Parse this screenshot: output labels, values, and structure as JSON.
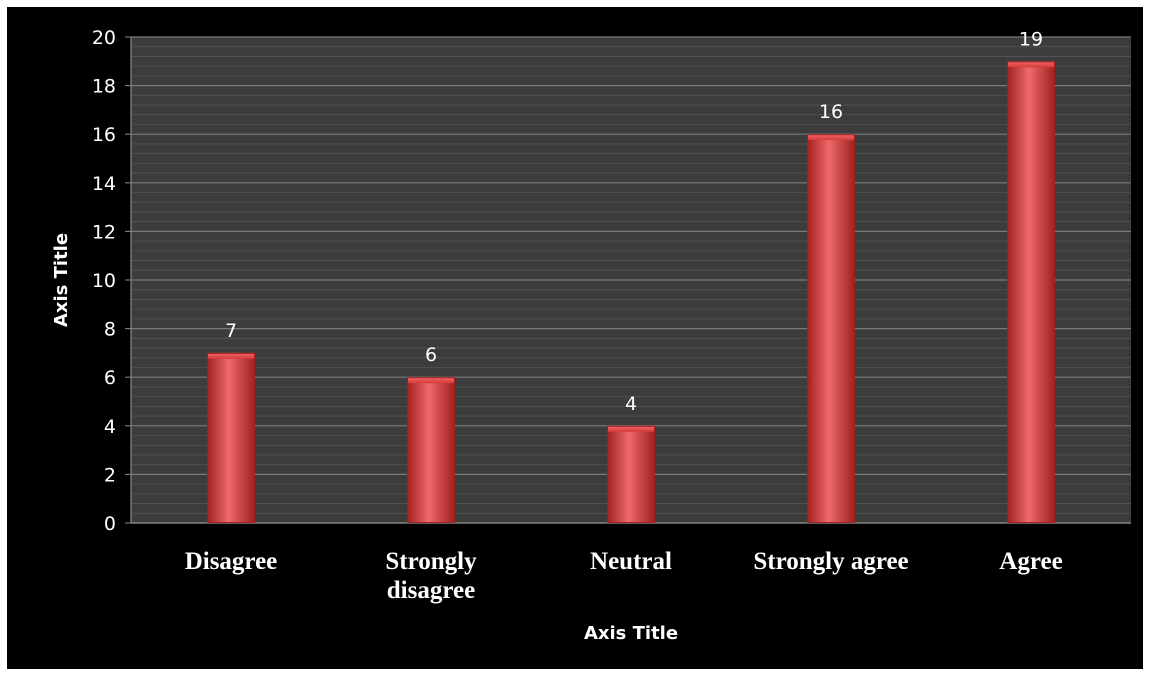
{
  "chart_data": {
    "type": "bar",
    "categories": [
      "Disagree",
      "Strongly disagree",
      "Neutral",
      "Strongly agree",
      "Agree"
    ],
    "category_lines": [
      [
        "Disagree"
      ],
      [
        "Strongly",
        "disagree"
      ],
      [
        "Neutral"
      ],
      [
        "Strongly agree"
      ],
      [
        "Agree"
      ]
    ],
    "values": [
      7,
      6,
      4,
      16,
      19
    ],
    "xlabel": "Axis Title",
    "ylabel": "Axis Title",
    "ylim": [
      0,
      20
    ],
    "yticks": [
      0,
      2,
      4,
      6,
      8,
      10,
      12,
      14,
      16,
      18,
      20
    ],
    "grid": true,
    "legend": "none",
    "colors": {
      "background": "#000000",
      "plot_background": "#3c3c3c",
      "gridline": "#7a7a7a",
      "bar": "#d63a3a",
      "bar_light": "#f06a6a",
      "bar_dark": "#9e1f1f",
      "text": "#ffffff"
    }
  }
}
